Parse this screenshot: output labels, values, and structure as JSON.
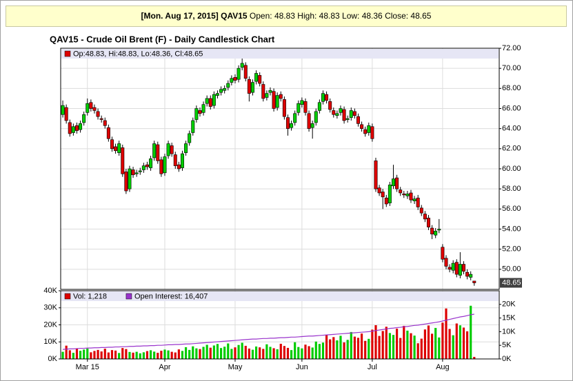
{
  "banner": {
    "date_symbol": "[Mon. Aug 17, 2015] QAV15",
    "details": "Open: 48.83 High: 48.83 Low: 48.36 Close: 48.65"
  },
  "chart_data": [
    {
      "type": "candlestick",
      "title": "QAV15 - Crude Oil Brent (F) - Daily Candlestick Chart",
      "legend": "Op:48.83, Hi:48.83, Lo:48.36, Cl:48.65",
      "up_color": "#00cc00",
      "down_color": "#dd0000",
      "grid": true,
      "xlim": [
        -0.6,
        124.1
      ],
      "ylim": [
        48,
        72
      ],
      "yticks": [
        {
          "value": 50,
          "label": "50.00"
        },
        {
          "value": 52,
          "label": "52.00"
        },
        {
          "value": 54,
          "label": "54.00"
        },
        {
          "value": 56,
          "label": "56.00"
        },
        {
          "value": 58,
          "label": "58.00"
        },
        {
          "value": 60,
          "label": "60.00"
        },
        {
          "value": 62,
          "label": "62.00"
        },
        {
          "value": 64,
          "label": "64.00"
        },
        {
          "value": 66,
          "label": "66.00"
        },
        {
          "value": 68,
          "label": "68.00"
        },
        {
          "value": 70,
          "label": "70.00"
        },
        {
          "value": 72,
          "label": "72.00"
        }
      ],
      "open": [
        65.4,
        66.1,
        64.6,
        63.6,
        64.3,
        63.9,
        64.6,
        65.6,
        66.6,
        66.1,
        65.7,
        65.0,
        64.8,
        64.1,
        62.9,
        62.2,
        61.6,
        62.1,
        59.7,
        58.0,
        59.9,
        59.5,
        59.7,
        59.9,
        60.4,
        60.1,
        61.1,
        62.4,
        60.9,
        59.6,
        61.3,
        62.3,
        61.4,
        60.4,
        60.1,
        61.6,
        62.6,
        63.6,
        64.9,
        65.8,
        65.6,
        66.5,
        67.0,
        66.3,
        67.3,
        67.6,
        67.8,
        68.1,
        68.6,
        69.1,
        68.9,
        70.1,
        70.3,
        68.9,
        67.6,
        68.7,
        69.3,
        68.4,
        67.1,
        67.6,
        67.7,
        66.1,
        67.4,
        66.9,
        65.1,
        64.1,
        64.6,
        65.6,
        66.4,
        66.7,
        65.5,
        64.1,
        64.6,
        65.8,
        66.7,
        67.4,
        66.7,
        65.8,
        65.3,
        65.6,
        65.9,
        64.9,
        65.1,
        65.7,
        65.2,
        64.4,
        63.9,
        63.6,
        64.2,
        60.8,
        58.1,
        57.7,
        57.1,
        56.6,
        58.3,
        59.1,
        57.9,
        57.5,
        57.3,
        57.6,
        56.8,
        57.1,
        56.1,
        55.5,
        55.1,
        54.1,
        53.4,
        53.9,
        52.2,
        51.1,
        50.2,
        49.9,
        50.7,
        49.4,
        50.5,
        49.7,
        49.2,
        48.83
      ],
      "high": [
        66.8,
        66.4,
        64.9,
        64.5,
        64.6,
        64.8,
        65.7,
        67.0,
        66.9,
        66.4,
        66.0,
        65.3,
        65.1,
        64.4,
        63.2,
        62.5,
        62.8,
        62.4,
        60.0,
        60.3,
        60.2,
        59.9,
        60.1,
        60.6,
        60.7,
        61.3,
        62.8,
        62.7,
        61.2,
        61.5,
        62.8,
        62.6,
        61.7,
        60.7,
        61.8,
        62.8,
        63.8,
        65.1,
        66.3,
        66.1,
        66.7,
        67.3,
        67.3,
        67.7,
        67.8,
        68.2,
        68.3,
        68.8,
        69.3,
        69.4,
        70.3,
        71.4,
        70.6,
        69.2,
        68.9,
        69.8,
        69.6,
        68.7,
        67.8,
        68.1,
        68.0,
        67.6,
        67.7,
        67.2,
        65.4,
        64.8,
        65.8,
        66.8,
        67.1,
        67.0,
        65.8,
        64.8,
        66.0,
        66.9,
        67.8,
        67.7,
        67.0,
        66.1,
        65.8,
        66.3,
        66.2,
        65.3,
        66.1,
        66.0,
        65.5,
        64.7,
        64.2,
        64.6,
        64.5,
        61.1,
        58.4,
        58.0,
        57.4,
        58.7,
        60.4,
        59.4,
        58.2,
        57.8,
        57.8,
        57.9,
        57.3,
        57.4,
        56.4,
        55.8,
        55.4,
        54.4,
        54.1,
        55.0,
        52.5,
        51.4,
        50.5,
        50.9,
        51.0,
        51.7,
        50.8,
        50.0,
        49.8,
        48.83
      ],
      "low": [
        65.1,
        64.5,
        63.2,
        63.3,
        63.5,
        63.6,
        64.3,
        65.3,
        65.7,
        65.5,
        64.9,
        64.6,
        64.0,
        62.7,
        61.7,
        61.5,
        61.3,
        59.2,
        57.5,
        57.7,
        59.1,
        59.2,
        59.4,
        59.6,
        59.9,
        59.8,
        60.8,
        60.5,
        59.2,
        59.3,
        61.0,
        61.2,
        60.0,
        59.7,
        59.8,
        61.3,
        62.3,
        63.3,
        64.6,
        65.2,
        65.3,
        66.2,
        65.9,
        66.0,
        67.0,
        67.3,
        67.5,
        67.8,
        68.3,
        68.5,
        68.6,
        69.8,
        68.7,
        66.7,
        67.3,
        68.4,
        68.2,
        66.7,
        66.8,
        67.3,
        65.7,
        65.8,
        66.7,
        64.9,
        63.3,
        63.8,
        64.3,
        65.3,
        66.1,
        65.3,
        63.7,
        63.0,
        64.3,
        65.5,
        66.4,
        66.5,
        65.6,
        65.1,
        65.0,
        65.3,
        64.5,
        64.6,
        64.8,
        65.0,
        64.2,
        63.7,
        63.2,
        63.3,
        62.7,
        57.7,
        57.3,
        56.0,
        56.2,
        56.3,
        58.0,
        57.7,
        57.3,
        57.1,
        57.0,
        56.6,
        56.5,
        55.9,
        55.3,
        54.7,
        53.9,
        53.0,
        53.1,
        53.6,
        50.7,
        50.0,
        49.7,
        49.6,
        49.2,
        49.1,
        49.5,
        49.0,
        48.9,
        48.36
      ],
      "close": [
        66.3,
        64.8,
        63.5,
        64.2,
        63.8,
        64.5,
        65.4,
        66.5,
        66.0,
        65.8,
        65.2,
        64.9,
        64.3,
        63.0,
        62.0,
        61.8,
        62.5,
        59.5,
        57.8,
        60.0,
        59.4,
        59.6,
        59.8,
        60.3,
        60.2,
        61.0,
        62.5,
        60.8,
        59.5,
        61.2,
        62.5,
        61.5,
        60.3,
        60.0,
        61.5,
        62.5,
        63.5,
        64.8,
        66.0,
        65.5,
        66.4,
        67.0,
        66.2,
        67.4,
        67.5,
        67.9,
        68.0,
        68.5,
        69.0,
        68.8,
        70.0,
        70.5,
        69.0,
        67.5,
        68.6,
        69.5,
        68.5,
        67.0,
        67.5,
        67.8,
        66.0,
        67.3,
        67.0,
        65.2,
        64.0,
        64.5,
        65.5,
        66.5,
        66.8,
        65.6,
        64.0,
        64.5,
        65.7,
        66.6,
        67.5,
        66.8,
        65.9,
        65.4,
        65.5,
        66.0,
        64.8,
        65.0,
        65.8,
        65.3,
        64.5,
        64.0,
        63.5,
        64.3,
        63.0,
        58.0,
        57.6,
        57.2,
        56.5,
        58.4,
        59.0,
        58.0,
        57.6,
        57.4,
        57.5,
        56.9,
        57.0,
        56.2,
        55.6,
        55.0,
        54.2,
        53.5,
        53.8,
        54.0,
        51.0,
        50.3,
        50.0,
        50.6,
        49.5,
        50.5,
        49.8,
        49.3,
        49.5,
        48.65
      ]
    },
    {
      "type": "bar",
      "grid": true,
      "xlim": [
        -0.6,
        124.1
      ],
      "xticks": [
        {
          "value": 7,
          "label": "Mar 15"
        },
        {
          "value": 29,
          "label": "Apr"
        },
        {
          "value": 49,
          "label": "May"
        },
        {
          "value": 68,
          "label": "Jun"
        },
        {
          "value": 88,
          "label": "Jul"
        },
        {
          "value": 108,
          "label": "Aug"
        }
      ],
      "ylim": [
        0,
        40000
      ],
      "yticks": [
        {
          "value": 0,
          "label": "0K"
        },
        {
          "value": 10000,
          "label": "10K"
        },
        {
          "value": 20000,
          "label": "20K"
        },
        {
          "value": 30000,
          "label": "30K"
        },
        {
          "value": 40000,
          "label": "40K"
        }
      ],
      "y2lim": [
        0,
        25000
      ],
      "y2ticks": [
        {
          "value": 0,
          "label": "0K"
        },
        {
          "value": 5000,
          "label": "5K"
        },
        {
          "value": 10000,
          "label": "10K"
        },
        {
          "value": 15000,
          "label": "15K"
        },
        {
          "value": 20000,
          "label": "20K"
        }
      ],
      "series": [
        {
          "name": "Vol: 1,218",
          "color": "#dd0000",
          "values": [
            4200,
            7800,
            5100,
            3600,
            6200,
            4800,
            5500,
            6100,
            3900,
            4700,
            5300,
            4400,
            6000,
            3800,
            5200,
            4900,
            3500,
            6400,
            5800,
            4100,
            3700,
            4200,
            3300,
            3900,
            4600,
            5100,
            4300,
            3600,
            4800,
            5500,
            5000,
            4200,
            3800,
            5600,
            4700,
            6900,
            5300,
            7400,
            6200,
            5800,
            7100,
            8300,
            6600,
            7900,
            8800,
            6400,
            7200,
            9100,
            5900,
            6800,
            8200,
            9500,
            7700,
            6100,
            5400,
            7300,
            6800,
            5900,
            8600,
            7100,
            6300,
            5700,
            8900,
            7600,
            6500,
            5200,
            9800,
            7000,
            6200,
            8400,
            7500,
            6700,
            10200,
            8800,
            9600,
            14200,
            11500,
            12800,
            10900,
            13600,
            9700,
            11200,
            15800,
            13100,
            12400,
            14900,
            10600,
            11800,
            17200,
            19800,
            13500,
            16400,
            18900,
            15200,
            14100,
            17800,
            12300,
            19400,
            16600,
            15100,
            13700,
            9200,
            11900,
            17300,
            19600,
            14800,
            18200,
            12600,
            21300,
            29600,
            17600,
            13900,
            20800,
            19700,
            18400,
            16200,
            31200,
            1218
          ]
        },
        {
          "name": "Open Interest: 16,407",
          "color": "#9933cc",
          "axis": "y2",
          "values": [
            3500,
            3600,
            3700,
            3700,
            3800,
            3900,
            3900,
            4000,
            4000,
            4100,
            4100,
            4200,
            4200,
            4300,
            4300,
            4400,
            4400,
            4500,
            4500,
            4600,
            4600,
            4700,
            4700,
            4800,
            4800,
            4900,
            4900,
            5000,
            5000,
            5100,
            5200,
            5200,
            5300,
            5300,
            5400,
            5500,
            5500,
            5600,
            5700,
            5800,
            5900,
            6000,
            6100,
            6200,
            6300,
            6400,
            6500,
            6600,
            6700,
            6800,
            6900,
            7000,
            7100,
            7200,
            7300,
            7300,
            7400,
            7500,
            7500,
            7600,
            7600,
            7700,
            7800,
            7800,
            7900,
            8000,
            8000,
            8100,
            8200,
            8300,
            8400,
            8400,
            8500,
            8600,
            8700,
            8800,
            8900,
            9000,
            9100,
            9200,
            9300,
            9400,
            9500,
            9600,
            9700,
            9800,
            9900,
            10000,
            10200,
            10400,
            10600,
            10800,
            11000,
            11200,
            11300,
            11500,
            11600,
            11800,
            11900,
            12100,
            12300,
            12400,
            12600,
            12800,
            13000,
            13200,
            13400,
            13600,
            13900,
            14200,
            14500,
            14800,
            15100,
            15400,
            15600,
            15900,
            16200,
            16407
          ]
        }
      ]
    }
  ]
}
